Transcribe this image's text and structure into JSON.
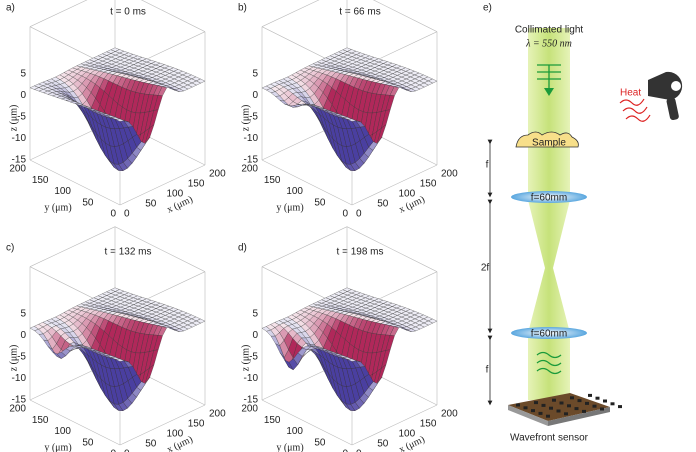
{
  "figure": {
    "panels": [
      {
        "label": "a)",
        "title": "t = 0 ms"
      },
      {
        "label": "b)",
        "title": "t = 66 ms"
      },
      {
        "label": "c)",
        "title": "t = 132 ms"
      },
      {
        "label": "d)",
        "title": "t = 198 ms"
      }
    ],
    "axes": {
      "z_label": "z (μm)",
      "y_label": "y (μm)",
      "x_label": "x (μm)",
      "z_ticks": [
        "5",
        "0",
        "-5",
        "-10",
        "-15"
      ],
      "y_ticks": [
        "200",
        "150",
        "100",
        "50",
        "0"
      ],
      "x_ticks": [
        "0",
        "50",
        "100",
        "150",
        "200"
      ]
    }
  },
  "setup": {
    "label": "e)",
    "light": "Collimated light",
    "wavelength": "λ = 550 nm",
    "heat": "Heat",
    "sample": "Sample",
    "f_top": "f",
    "lens_1": "f=60mm",
    "two_f": "2f",
    "lens_2": "f=60mm",
    "f_bottom": "f",
    "sensor": "Wavefront sensor"
  }
}
